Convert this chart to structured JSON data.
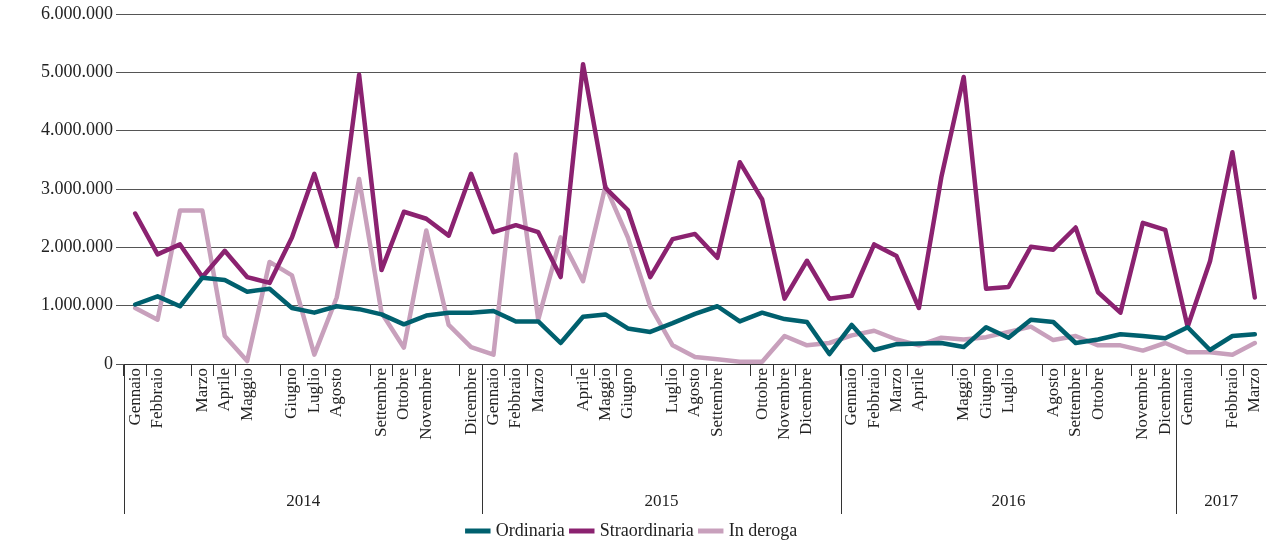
{
  "chart_data": {
    "type": "line",
    "categories": [
      "Gennaio",
      "Febbraio",
      null,
      "Marzo",
      "Aprile",
      "Maggio",
      null,
      "Giugno",
      "Luglio",
      "Agosto",
      null,
      "Settembre",
      "Ottobre",
      "Novembre",
      null,
      "Dicembre",
      "Gennaio",
      "Febbraio",
      "Marzo",
      null,
      "Aprile",
      "Maggio",
      "Giugno",
      null,
      "Luglio",
      "Agosto",
      "Settembre",
      null,
      "Ottobre",
      "Novembre",
      "Dicembre",
      null,
      "Gennaio",
      "Febbraio",
      "Marzo",
      "Aprile",
      null,
      "Maggio",
      "Giugno",
      "Luglio",
      null,
      "Agosto",
      "Settembre",
      "Ottobre",
      null,
      "Novembre",
      "Dicembre",
      "Gennaio",
      null,
      "Febbraio",
      "Marzo"
    ],
    "annotations": [
      "2014",
      "2015",
      "2016",
      "2017"
    ],
    "ylim": [
      0,
      6000000
    ],
    "yticks": [
      0,
      {
        "value": 1000000,
        "label": "1.000.000"
      },
      {
        "value": 2000000,
        "label": "2.000.000"
      },
      {
        "value": 3000000,
        "label": "3.000.000"
      },
      {
        "value": 4000000,
        "label": "4.000.000"
      },
      {
        "value": 5000000,
        "label": "5.000.000"
      },
      {
        "value": 6000000,
        "label": "6.000.000"
      }
    ],
    "grid": "y",
    "legend": "bottom",
    "series": [
      {
        "name": "Ordinaria",
        "color": "#00606e",
        "values": [
          1020000,
          1160000,
          990000,
          1480000,
          1440000,
          1240000,
          1290000,
          960000,
          880000,
          990000,
          940000,
          850000,
          680000,
          830000,
          880000,
          880000,
          910000,
          730000,
          730000,
          360000,
          810000,
          850000,
          610000,
          550000,
          700000,
          860000,
          990000,
          730000,
          880000,
          770000,
          720000,
          170000,
          670000,
          240000,
          340000,
          350000,
          360000,
          290000,
          630000,
          450000,
          760000,
          720000,
          360000,
          420000,
          510000,
          480000,
          440000,
          630000,
          240000,
          480000,
          510000
        ]
      },
      {
        "name": "Straordinaria",
        "color": "#8b2270",
        "values": [
          2580000,
          1880000,
          2050000,
          1490000,
          1940000,
          1490000,
          1390000,
          2170000,
          3260000,
          2020000,
          4960000,
          1610000,
          2610000,
          2490000,
          2200000,
          3260000,
          2260000,
          2380000,
          2260000,
          1490000,
          5140000,
          3020000,
          2640000,
          1490000,
          2140000,
          2230000,
          1820000,
          3460000,
          2820000,
          1120000,
          1770000,
          1120000,
          1170000,
          2050000,
          1850000,
          960000,
          3200000,
          4920000,
          1290000,
          1320000,
          2010000,
          1960000,
          2340000,
          1230000,
          880000,
          2420000,
          2300000,
          640000,
          1760000,
          3630000,
          1140000
        ]
      },
      {
        "name": "In deroga",
        "color": "#c8a0bc",
        "values": [
          960000,
          760000,
          2630000,
          2630000,
          480000,
          50000,
          1750000,
          1520000,
          160000,
          1140000,
          3170000,
          880000,
          280000,
          2290000,
          670000,
          290000,
          160000,
          3590000,
          760000,
          2170000,
          1420000,
          3050000,
          2170000,
          990000,
          320000,
          120000,
          80000,
          40000,
          40000,
          480000,
          320000,
          360000,
          490000,
          570000,
          420000,
          320000,
          450000,
          420000,
          460000,
          550000,
          640000,
          410000,
          480000,
          320000,
          320000,
          230000,
          360000,
          200000,
          200000,
          160000,
          360000
        ]
      }
    ]
  }
}
